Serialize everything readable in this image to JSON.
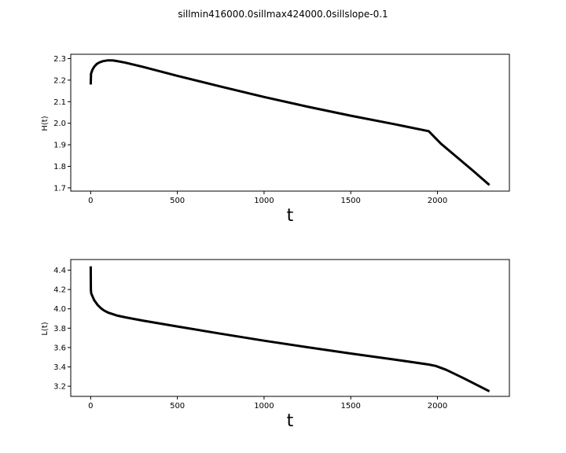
{
  "figure_title": "sillmin416000.0sillmax424000.0sillslope-0.1",
  "chart_data": [
    {
      "type": "line",
      "title": "",
      "xlabel": "t",
      "ylabel": "H(t)",
      "xlim": [
        -115,
        2415
      ],
      "ylim": [
        1.685,
        2.32
      ],
      "xticks": [
        0,
        500,
        1000,
        1500,
        2000
      ],
      "xtick_labels": [
        "0",
        "500",
        "1000",
        "1500",
        "2000"
      ],
      "yticks": [
        1.7,
        1.8,
        1.9,
        2.0,
        2.1,
        2.2,
        2.3
      ],
      "ytick_labels": [
        "1.7",
        "1.8",
        "1.9",
        "2.0",
        "2.1",
        "2.2",
        "2.3"
      ],
      "grid": false,
      "series": [
        {
          "color": "#000000",
          "x": [
            0,
            2,
            5,
            10,
            20,
            35,
            50,
            70,
            100,
            130,
            160,
            200,
            300,
            500,
            750,
            1000,
            1250,
            1500,
            1750,
            1950,
            1980,
            2020,
            2100,
            2200,
            2300
          ],
          "y": [
            2.18,
            2.23,
            2.237,
            2.248,
            2.262,
            2.275,
            2.282,
            2.288,
            2.292,
            2.291,
            2.287,
            2.281,
            2.262,
            2.22,
            2.17,
            2.122,
            2.077,
            2.035,
            1.996,
            1.963,
            1.938,
            1.905,
            1.851,
            1.783,
            1.713
          ]
        }
      ]
    },
    {
      "type": "line",
      "title": "",
      "xlabel": "t",
      "ylabel": "L(t)",
      "xlim": [
        -115,
        2415
      ],
      "ylim": [
        3.095,
        4.51
      ],
      "xticks": [
        0,
        500,
        1000,
        1500,
        2000
      ],
      "xtick_labels": [
        "0",
        "500",
        "1000",
        "1500",
        "2000"
      ],
      "yticks": [
        3.2,
        3.4,
        3.6,
        3.8,
        4.0,
        4.2,
        4.4
      ],
      "ytick_labels": [
        "3.2",
        "3.4",
        "3.6",
        "3.8",
        "4.0",
        "4.2",
        "4.4"
      ],
      "grid": false,
      "series": [
        {
          "color": "#000000",
          "x": [
            0,
            1,
            3,
            10,
            20,
            40,
            60,
            80,
            100,
            150,
            200,
            300,
            500,
            750,
            1000,
            1250,
            1500,
            1750,
            1950,
            1990,
            2050,
            2150,
            2300
          ],
          "y": [
            4.44,
            4.2,
            4.16,
            4.13,
            4.09,
            4.04,
            4.005,
            3.98,
            3.962,
            3.932,
            3.912,
            3.879,
            3.818,
            3.743,
            3.671,
            3.603,
            3.538,
            3.476,
            3.424,
            3.41,
            3.37,
            3.284,
            3.147
          ]
        }
      ]
    }
  ]
}
